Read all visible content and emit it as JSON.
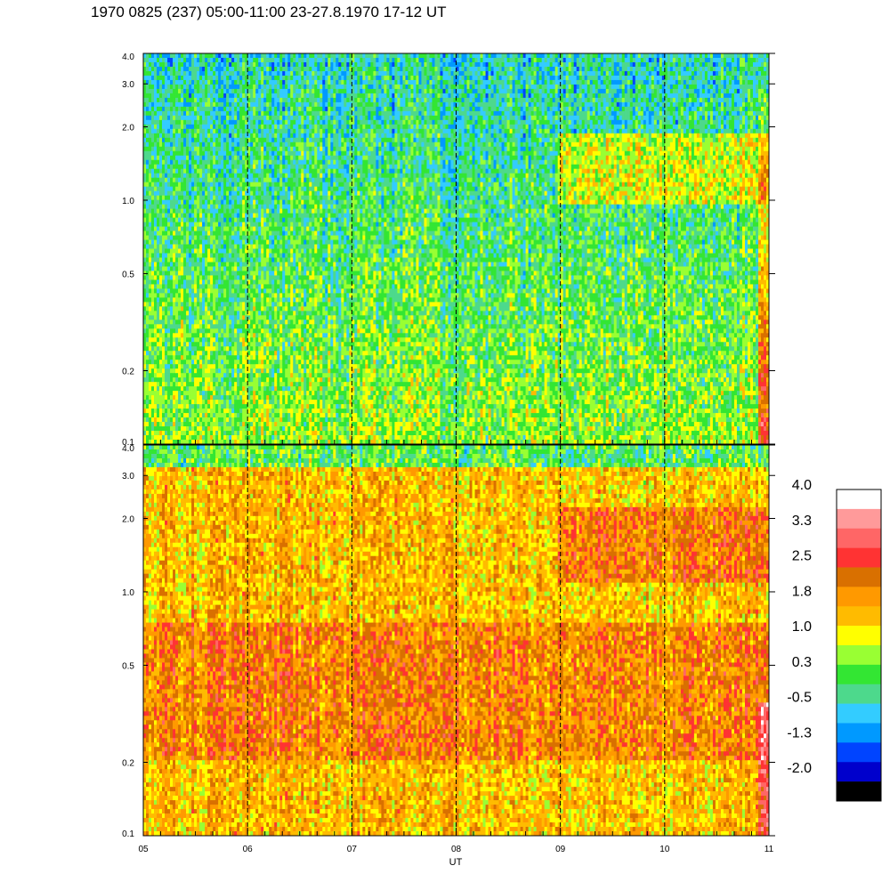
{
  "title": "1970 0825 (237) 05:00-11:00 23-27.8.1970  17-12 UT",
  "chart_data": [
    {
      "type": "heatmap",
      "panel": "top",
      "x_ticks": [
        "05",
        "06",
        "07",
        "08",
        "09",
        "10",
        "11"
      ],
      "x_range": [
        5,
        11
      ],
      "x_unit": "UT hour",
      "y_ticks": [
        0.1,
        0.2,
        0.5,
        1.0,
        2.0,
        3.0,
        4.0
      ],
      "y_tick_labels": [
        "0.1",
        "0.2",
        "0.5",
        "1.0",
        "2.0",
        "3.0",
        "4.0"
      ],
      "y_range": [
        0.1,
        4.0
      ],
      "y_scale": "log",
      "dashed_vertical_lines_at": [
        6,
        7,
        8,
        9,
        10
      ],
      "dominant_level": 0.6,
      "color_note": "mostly green/yellow, blue streaks near top, orange patches 09-11 around 1.0-2.0"
    },
    {
      "type": "heatmap",
      "panel": "bottom",
      "x_ticks": [
        "05",
        "06",
        "07",
        "08",
        "09",
        "10",
        "11"
      ],
      "x_range": [
        5,
        11
      ],
      "xlabel": "UT",
      "y_ticks": [
        0.1,
        0.2,
        0.5,
        1.0,
        2.0,
        3.0,
        4.0
      ],
      "y_tick_labels": [
        "0.1",
        "0.2",
        "0.5",
        "1.0",
        "2.0",
        "3.0",
        "4.0"
      ],
      "y_range": [
        0.1,
        4.0
      ],
      "y_scale": "log",
      "dashed_vertical_lines_at": [
        6,
        7,
        8,
        9,
        10
      ],
      "dominant_level": 1.6,
      "color_note": "mostly orange/yellow, dark orange band 0.3-0.8, red streak near 11"
    }
  ],
  "colorbar": {
    "labels": [
      "4.0",
      "3.3",
      "2.5",
      "1.8",
      "1.0",
      "0.3",
      "-0.5",
      "-1.3",
      "-2.0"
    ],
    "colors_top_to_bottom": [
      "#ffffff",
      "#ff9a9a",
      "#ff6666",
      "#ff3333",
      "#d97000",
      "#ff9900",
      "#ffbb00",
      "#ffff00",
      "#99ff33",
      "#33e633",
      "#4dd98c",
      "#33ccff",
      "#0099ff",
      "#0044ff",
      "#0000cc",
      "#000000"
    ],
    "value_min": -2.0,
    "value_max": 4.0
  }
}
